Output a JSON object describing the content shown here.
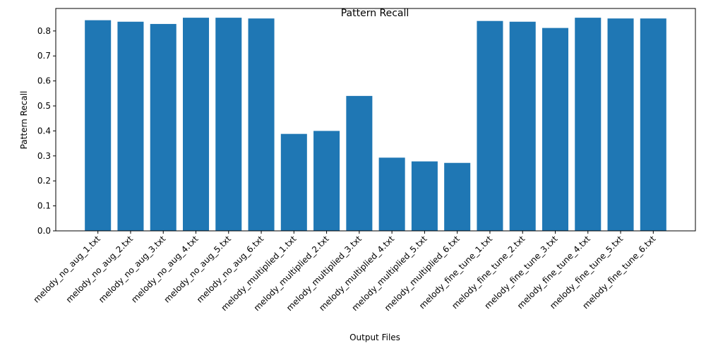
{
  "chart_data": {
    "type": "bar",
    "title": "Pattern Recall",
    "xlabel": "Output Files",
    "ylabel": "Pattern Recall",
    "ylim": [
      0,
      0.89
    ],
    "yticks": [
      0.0,
      0.1,
      0.2,
      0.3,
      0.4,
      0.5,
      0.6,
      0.7,
      0.8
    ],
    "grid": false,
    "bar_color": "#1f77b4",
    "categories": [
      "melody_no_aug_1.txt",
      "melody_no_aug_2.txt",
      "melody_no_aug_3.txt",
      "melody_no_aug_4.txt",
      "melody_no_aug_5.txt",
      "melody_no_aug_6.txt",
      "melody_multiplied_1.txt",
      "melody_multiplied_2.txt",
      "melody_multiplied_3.txt",
      "melody_multiplied_4.txt",
      "melody_multiplied_5.txt",
      "melody_multiplied_6.txt",
      "melody_fine_tune_1.txt",
      "melody_fine_tune_2.txt",
      "melody_fine_tune_3.txt",
      "melody_fine_tune_4.txt",
      "melody_fine_tune_5.txt",
      "melody_fine_tune_6.txt"
    ],
    "values": [
      0.843,
      0.837,
      0.828,
      0.853,
      0.853,
      0.85,
      0.388,
      0.4,
      0.54,
      0.293,
      0.278,
      0.272,
      0.84,
      0.837,
      0.812,
      0.853,
      0.85,
      0.85
    ]
  }
}
